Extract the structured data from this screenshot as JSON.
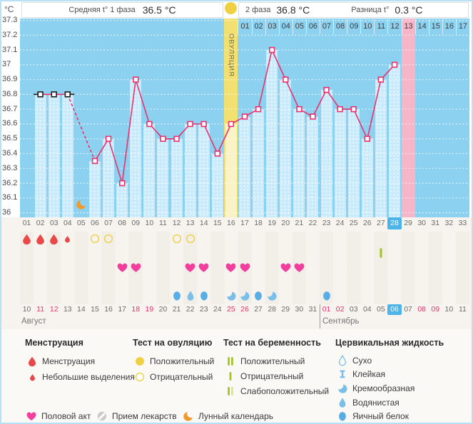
{
  "header": {
    "unit": "°C",
    "avg_phase1_label": "Средняя t° 1 фаза",
    "avg_phase1_value": "36.5 °C",
    "phase2_label": "2 фаза",
    "phase2_value": "36.8 °C",
    "diff_label": "Разница t°",
    "diff_value": "0.3 °C"
  },
  "chart_data": {
    "type": "line",
    "ylabel": "°C",
    "ylim": [
      36,
      37.3
    ],
    "y_ticks": [
      "37.3",
      "37.2",
      "37.1",
      "37",
      "36.9",
      "36.8",
      "36.7",
      "36.6",
      "36.5",
      "36.4",
      "36.3",
      "36.2",
      "36.1",
      "36"
    ],
    "x_days": [
      "01",
      "02",
      "03",
      "04",
      "05",
      "06",
      "07",
      "08",
      "09",
      "10",
      "11",
      "12",
      "13",
      "14",
      "15",
      "16",
      "17",
      "18",
      "19",
      "20",
      "21",
      "22",
      "23",
      "24",
      "25",
      "26",
      "27",
      "28",
      "29",
      "30",
      "31",
      "32",
      "33"
    ],
    "values": [
      null,
      36.8,
      36.8,
      36.8,
      null,
      36.35,
      36.5,
      36.2,
      36.9,
      36.6,
      36.5,
      36.5,
      36.6,
      36.6,
      36.4,
      36.6,
      36.65,
      36.7,
      37.1,
      36.9,
      36.7,
      36.65,
      36.83,
      36.7,
      36.7,
      36.5,
      36.9,
      37.0,
      null,
      null,
      null,
      null,
      null
    ],
    "black_marker_days": [
      2,
      3,
      4
    ],
    "ovulation_day": 16,
    "ovulation_label": "ОВУЛЯЦИЯ",
    "today_day": 28,
    "expected_period_day": 29,
    "moon_day": 5,
    "avg_phase1": 36.5,
    "avg_phase2": 36.8,
    "diff": 0.3,
    "dpo_row": {
      "start_day": 17,
      "labels": [
        "01",
        "02",
        "03",
        "04",
        "05",
        "06",
        "07",
        "08",
        "09",
        "10",
        "11",
        "12",
        "13",
        "14",
        "15",
        "16",
        "17"
      ],
      "highlight": "13"
    }
  },
  "events": {
    "menstruation_days": [
      1,
      2,
      3
    ],
    "spotting_days": [
      4
    ],
    "ovulation_test_negative_days": [
      6,
      7,
      12,
      13
    ],
    "pregnancy_test_negative_days": [
      27
    ],
    "intercourse_days": [
      8,
      9,
      13,
      14,
      16,
      17,
      20,
      21
    ],
    "cervical_fluid": [
      {
        "day": 12,
        "type": "eggwhite"
      },
      {
        "day": 13,
        "type": "watery"
      },
      {
        "day": 14,
        "type": "eggwhite"
      },
      {
        "day": 16,
        "type": "creamy"
      },
      {
        "day": 17,
        "type": "creamy"
      },
      {
        "day": 18,
        "type": "eggwhite"
      },
      {
        "day": 19,
        "type": "creamy"
      },
      {
        "day": 23,
        "type": "eggwhite"
      }
    ]
  },
  "dates": {
    "labels": [
      "10",
      "11",
      "12",
      "13",
      "14",
      "15",
      "16",
      "17",
      "18",
      "19",
      "20",
      "21",
      "22",
      "23",
      "24",
      "25",
      "26",
      "27",
      "28",
      "29",
      "30",
      "31",
      "01",
      "02",
      "03",
      "04",
      "05",
      "06",
      "07",
      "08",
      "09",
      "10",
      "11"
    ],
    "weekend_days": [
      2,
      3,
      9,
      10,
      16,
      17,
      23,
      24,
      30,
      31
    ],
    "today_day": 28,
    "august_label": "Август",
    "september_label": "Сентябрь"
  },
  "legend": {
    "columns": [
      {
        "title": "Менструация",
        "items": [
          {
            "icon": "drop",
            "label": "Менструация"
          },
          {
            "icon": "drop-small",
            "label": "Небольшие выделения"
          }
        ]
      },
      {
        "title": "Тест на овуляцию",
        "items": [
          {
            "icon": "circle-filled",
            "label": "Положительный"
          },
          {
            "icon": "circle-outline",
            "label": "Отрицательный"
          }
        ]
      },
      {
        "title": "Тест на беременность",
        "items": [
          {
            "icon": "bars-positive",
            "label": "Положительный"
          },
          {
            "icon": "bar-negative",
            "label": "Отрицательный"
          },
          {
            "icon": "bars-weak",
            "label": "Слабоположительный"
          }
        ]
      },
      {
        "title": "Цервикальная жидкость",
        "items": [
          {
            "icon": "drop-outline",
            "label": "Сухо"
          },
          {
            "icon": "sticky",
            "label": "Клейкая"
          },
          {
            "icon": "creamy",
            "label": "Кремообразная"
          },
          {
            "icon": "watery",
            "label": "Водянистая"
          },
          {
            "icon": "eggwhite",
            "label": "Яичный белок"
          }
        ]
      }
    ],
    "bottom": [
      {
        "icon": "heart",
        "label": "Половой акт"
      },
      {
        "icon": "pill",
        "label": "Прием лекарств"
      },
      {
        "icon": "moon",
        "label": "Лунный календарь"
      }
    ]
  },
  "colors": {
    "plot_bg": "#8dd1f0",
    "bar": "#c9eafb",
    "line": "#e8326e",
    "marker_black": "#1c1c1c",
    "ovulation_band": "#f2e170",
    "ovulation_bar": "#f9f3c5",
    "period_expected": "#f6b6c8",
    "today_highlight": "#4cb4e8",
    "weekend_text": "#e8326e",
    "menstruation": "#e84848",
    "ovulation_test": "#f0d043",
    "pregnancy_test": "#a5c32b",
    "pregnancy_test_weak": "#d7e4a3",
    "intercourse": "#f23f9d",
    "fluid": "#79bfe9",
    "fluid_eggwhite": "#58ade4",
    "moon": "#f09a2e",
    "pill": "#cbcbcb"
  }
}
